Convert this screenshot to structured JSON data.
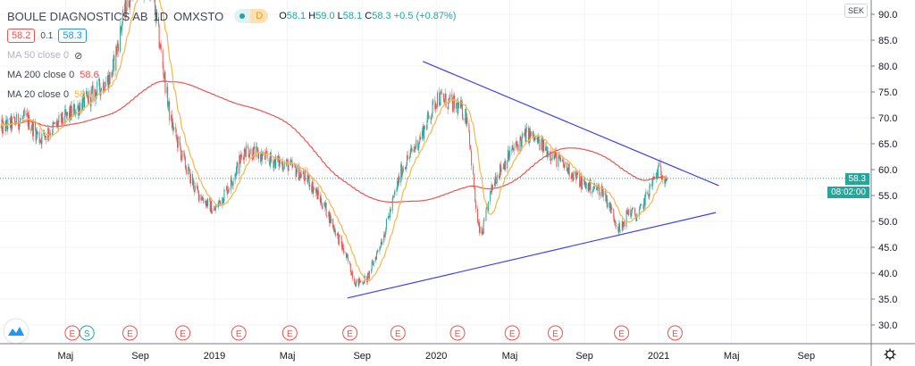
{
  "header": {
    "symbol": "BOULE DIAGNOSTICS AB",
    "interval": "1D",
    "exchange": "OMXSTO",
    "market_status": "D",
    "ohlc": {
      "o_label": "O",
      "o": "58.1",
      "h_label": "H",
      "h": "59.0",
      "l_label": "L",
      "l": "58.1",
      "c_label": "C",
      "c": "58.3",
      "change": "+0.5 (+0.87%)"
    },
    "bid": "58.2",
    "spread": "0.1",
    "ask": "58.3"
  },
  "indicators": [
    {
      "label": "MA 50 close 0",
      "value": "",
      "hidden": true
    },
    {
      "label": "MA 200 close 0",
      "value": "58.6",
      "color": "#ef5350"
    },
    {
      "label": "MA 20 close 0",
      "value": "58.1",
      "color": "#f7b54b"
    }
  ],
  "axis": {
    "currency": "SEK",
    "current_price": "58.3",
    "countdown": "08:02:00"
  },
  "colors": {
    "up": "#26a69a",
    "down": "#ef5350",
    "trendline": "#3f3ff0",
    "ma200": "#ef5350",
    "ma20": "#f7b54b"
  },
  "chart_data": {
    "type": "candlestick",
    "y_ticks": [
      "90.0",
      "85.0",
      "80.0",
      "75.0",
      "70.0",
      "65.0",
      "60.0",
      "55.0",
      "50.0",
      "45.0",
      "40.0",
      "35.0",
      "30.0"
    ],
    "x_ticks": [
      {
        "label": "Maj",
        "date": "2018-05-01"
      },
      {
        "label": "Sep",
        "date": "2018-09-01"
      },
      {
        "label": "2019",
        "date": "2019-01-01"
      },
      {
        "label": "Maj",
        "date": "2019-05-01"
      },
      {
        "label": "Sep",
        "date": "2019-09-01"
      },
      {
        "label": "2020",
        "date": "2020-01-01"
      },
      {
        "label": "Maj",
        "date": "2020-05-01"
      },
      {
        "label": "Sep",
        "date": "2020-09-01"
      },
      {
        "label": "2021",
        "date": "2021-01-01"
      },
      {
        "label": "Maj",
        "date": "2021-05-01"
      },
      {
        "label": "Sep",
        "date": "2021-09-01"
      }
    ],
    "ylim": [
      27,
      92
    ],
    "approx_close": [
      [
        "2018-01-15",
        68
      ],
      [
        "2018-02-25",
        70
      ],
      [
        "2018-03-20",
        66
      ],
      [
        "2018-05-01",
        70
      ],
      [
        "2018-06-10",
        74
      ],
      [
        "2018-07-15",
        78
      ],
      [
        "2018-08-05",
        90
      ],
      [
        "2018-08-20",
        96
      ],
      [
        "2018-09-20",
        95
      ],
      [
        "2018-10-08",
        80
      ],
      [
        "2018-10-20",
        70
      ],
      [
        "2018-11-10",
        62
      ],
      [
        "2018-12-01",
        56
      ],
      [
        "2019-01-01",
        52
      ],
      [
        "2019-01-30",
        58
      ],
      [
        "2019-02-20",
        64
      ],
      [
        "2019-03-30",
        62
      ],
      [
        "2019-05-01",
        61
      ],
      [
        "2019-06-05",
        58
      ],
      [
        "2019-07-05",
        52
      ],
      [
        "2019-08-03",
        44
      ],
      [
        "2019-08-22",
        38
      ],
      [
        "2019-09-10",
        39
      ],
      [
        "2019-10-08",
        48
      ],
      [
        "2019-11-05",
        60
      ],
      [
        "2019-12-05",
        66
      ],
      [
        "2020-01-03",
        74
      ],
      [
        "2020-02-08",
        72
      ],
      [
        "2020-02-22",
        70
      ],
      [
        "2020-03-08",
        50
      ],
      [
        "2020-03-15",
        47
      ],
      [
        "2020-04-05",
        58
      ],
      [
        "2020-05-01",
        63
      ],
      [
        "2020-05-30",
        67
      ],
      [
        "2020-06-30",
        64
      ],
      [
        "2020-08-05",
        60
      ],
      [
        "2020-09-01",
        57
      ],
      [
        "2020-10-01",
        56
      ],
      [
        "2020-10-30",
        48
      ],
      [
        "2020-11-12",
        52
      ],
      [
        "2020-11-28",
        51
      ],
      [
        "2020-12-20",
        57
      ],
      [
        "2021-01-01",
        60
      ],
      [
        "2021-01-15",
        58.3
      ]
    ],
    "trendlines": [
      {
        "from": [
          "2019-12-10",
          80.9
        ],
        "to": [
          "2021-04-10",
          56.9
        ]
      },
      {
        "from": [
          "2019-08-08",
          35.2
        ],
        "to": [
          "2021-04-05",
          51.7
        ]
      }
    ],
    "events": [
      {
        "type": "E",
        "date": "2018-05-12"
      },
      {
        "type": "S",
        "date": "2018-06-05"
      },
      {
        "type": "E",
        "date": "2018-08-15"
      },
      {
        "type": "E",
        "date": "2018-11-10"
      },
      {
        "type": "E",
        "date": "2019-02-10"
      },
      {
        "type": "E",
        "date": "2019-05-05"
      },
      {
        "type": "E",
        "date": "2019-08-12"
      },
      {
        "type": "E",
        "date": "2019-10-30"
      },
      {
        "type": "E",
        "date": "2020-02-05"
      },
      {
        "type": "E",
        "date": "2020-05-05"
      },
      {
        "type": "E",
        "date": "2020-07-15"
      },
      {
        "type": "E",
        "date": "2020-11-01"
      },
      {
        "type": "E",
        "date": "2021-01-28"
      }
    ]
  }
}
